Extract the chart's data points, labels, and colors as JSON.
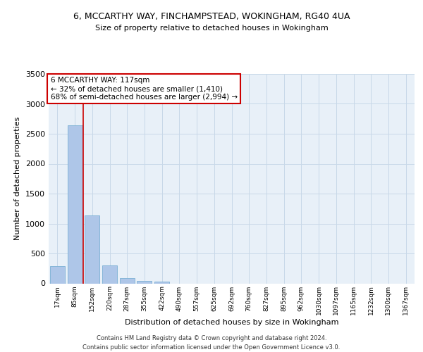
{
  "title_line1": "6, MCCARTHY WAY, FINCHAMPSTEAD, WOKINGHAM, RG40 4UA",
  "title_line2": "Size of property relative to detached houses in Wokingham",
  "xlabel": "Distribution of detached houses by size in Wokingham",
  "ylabel": "Number of detached properties",
  "footer_line1": "Contains HM Land Registry data © Crown copyright and database right 2024.",
  "footer_line2": "Contains public sector information licensed under the Open Government Licence v3.0.",
  "bar_labels": [
    "17sqm",
    "85sqm",
    "152sqm",
    "220sqm",
    "287sqm",
    "355sqm",
    "422sqm",
    "490sqm",
    "557sqm",
    "625sqm",
    "692sqm",
    "760sqm",
    "827sqm",
    "895sqm",
    "962sqm",
    "1030sqm",
    "1097sqm",
    "1165sqm",
    "1232sqm",
    "1300sqm",
    "1367sqm"
  ],
  "bar_values": [
    290,
    2640,
    1140,
    295,
    85,
    45,
    30,
    0,
    0,
    0,
    0,
    0,
    0,
    0,
    0,
    0,
    0,
    0,
    0,
    0,
    0
  ],
  "bar_color": "#aec6e8",
  "bar_edge_color": "#7bafd4",
  "grid_color": "#c8d8e8",
  "background_color": "#e8f0f8",
  "vline_color": "#cc0000",
  "annotation_text": "6 MCCARTHY WAY: 117sqm\n← 32% of detached houses are smaller (1,410)\n68% of semi-detached houses are larger (2,994) →",
  "annotation_box_color": "#ffffff",
  "annotation_box_edge": "#cc0000",
  "ylim": [
    0,
    3500
  ],
  "yticks": [
    0,
    500,
    1000,
    1500,
    2000,
    2500,
    3000,
    3500
  ]
}
